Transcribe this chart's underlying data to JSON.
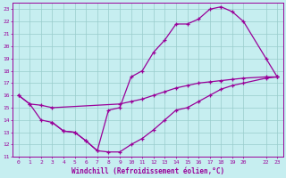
{
  "xlabel": "Windchill (Refroidissement éolien,°C)",
  "xlim": [
    -0.5,
    23.5
  ],
  "ylim": [
    11,
    23.5
  ],
  "xticks": [
    0,
    1,
    2,
    3,
    4,
    5,
    6,
    7,
    8,
    9,
    10,
    11,
    12,
    13,
    14,
    15,
    16,
    17,
    18,
    19,
    20,
    22,
    23
  ],
  "yticks": [
    11,
    12,
    13,
    14,
    15,
    16,
    17,
    18,
    19,
    20,
    21,
    22,
    23
  ],
  "bg_color": "#c6eef0",
  "line_color": "#990099",
  "grid_color": "#99cccc",
  "line1_x": [
    0,
    1,
    2,
    3,
    9,
    10,
    11,
    12,
    13,
    14,
    15,
    16,
    17,
    18,
    19,
    20,
    22,
    23
  ],
  "line1_y": [
    16.0,
    15.3,
    15.2,
    15.0,
    15.3,
    15.5,
    15.7,
    16.0,
    16.3,
    16.6,
    16.8,
    17.0,
    17.1,
    17.2,
    17.3,
    17.4,
    17.5,
    17.5
  ],
  "line2_x": [
    0,
    1,
    2,
    3,
    4,
    5,
    6,
    7,
    8,
    9,
    10,
    11,
    12,
    13,
    14,
    15,
    16,
    17,
    18,
    19,
    20,
    22,
    23
  ],
  "line2_y": [
    16.0,
    15.3,
    14.0,
    13.8,
    13.1,
    13.0,
    12.3,
    11.5,
    11.4,
    11.4,
    12.0,
    12.5,
    13.2,
    14.0,
    14.8,
    15.0,
    15.5,
    16.0,
    16.5,
    16.8,
    17.0,
    17.4,
    17.5
  ],
  "line3_x": [
    3,
    4,
    5,
    6,
    7,
    8,
    9,
    10,
    11,
    12,
    13,
    14,
    15,
    16,
    17,
    18,
    19,
    20,
    22,
    23
  ],
  "line3_y": [
    13.8,
    13.1,
    13.0,
    12.3,
    11.5,
    14.8,
    15.0,
    17.5,
    18.0,
    19.5,
    20.5,
    21.8,
    21.8,
    22.2,
    23.0,
    23.2,
    22.8,
    22.0,
    19.0,
    17.5
  ]
}
